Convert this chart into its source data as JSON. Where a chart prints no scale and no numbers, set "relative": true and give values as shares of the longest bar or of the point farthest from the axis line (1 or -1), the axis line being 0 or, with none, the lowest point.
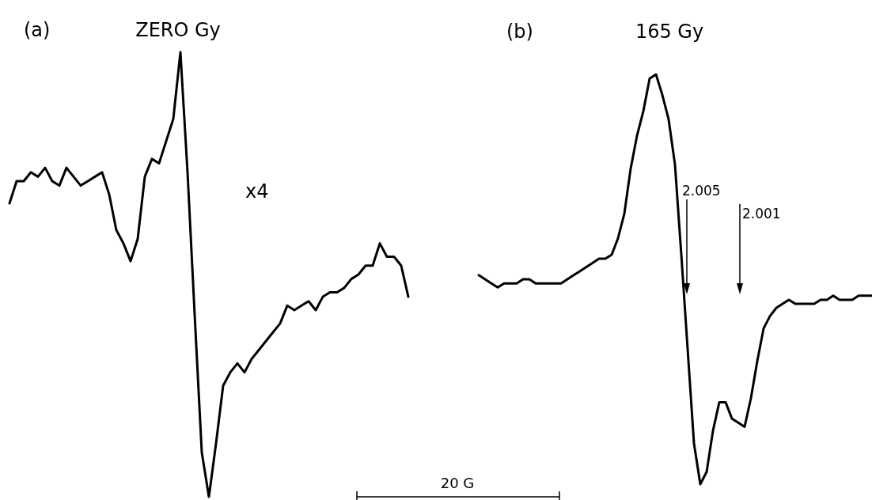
{
  "chart_data": [
    {
      "type": "line",
      "title": "ZERO Gy",
      "relative": true,
      "annotations": [
        "(a)",
        "x4"
      ],
      "categories": [
        null,
        null,
        null,
        null,
        null,
        null,
        null,
        null,
        null,
        null,
        null,
        null,
        null,
        null,
        null,
        null,
        null,
        null,
        null,
        null,
        null,
        null,
        null,
        null,
        null,
        null,
        null,
        null,
        null,
        null,
        null,
        null,
        null,
        null,
        null,
        null,
        null,
        null,
        null,
        null,
        null,
        null,
        null,
        null,
        null,
        null,
        null,
        null,
        null,
        null,
        null,
        null,
        null,
        null,
        null,
        null,
        null
      ],
      "series": [
        {
          "color": "#000000",
          "values": [
            0.66,
            0.71,
            0.71,
            0.73,
            0.72,
            0.74,
            0.71,
            0.7,
            0.74,
            0.72,
            0.7,
            0.71,
            0.72,
            0.73,
            0.68,
            0.6,
            0.57,
            0.53,
            0.58,
            0.72,
            0.76,
            0.75,
            0.8,
            0.85,
            1,
            0.73,
            0.41,
            0.1,
            0,
            0.12,
            0.25,
            0.28,
            0.3,
            0.28,
            0.31,
            0.33,
            0.35,
            0.37,
            0.39,
            0.43,
            0.42,
            0.43,
            0.44,
            0.42,
            0.45,
            0.46,
            0.46,
            0.47,
            0.49,
            0.5,
            0.52,
            0.52,
            0.57,
            0.54,
            0.54,
            0.52,
            0.45
          ]
        }
      ]
    },
    {
      "type": "line",
      "title": "165 Gy",
      "relative": true,
      "annotations": [
        "(b)",
        "2.005",
        "2.001",
        "20 G"
      ],
      "categories": [
        null,
        null,
        null,
        null,
        null,
        null,
        null,
        null,
        null,
        null,
        null,
        null,
        null,
        null,
        null,
        null,
        null,
        null,
        null,
        null,
        null,
        null,
        null,
        null,
        null,
        null,
        null,
        null,
        null,
        null,
        null,
        null,
        null,
        null,
        null,
        null,
        null,
        null,
        null,
        null,
        null,
        null,
        null,
        null,
        null,
        null,
        null,
        null,
        null,
        null,
        null,
        null,
        null,
        null,
        null,
        null,
        null,
        null,
        null,
        null,
        null,
        null,
        null
      ],
      "series": [
        {
          "color": "#000000",
          "values": [
            0.51,
            0.5,
            0.49,
            0.48,
            0.49,
            0.49,
            0.49,
            0.5,
            0.5,
            0.49,
            0.49,
            0.49,
            0.49,
            0.49,
            0.5,
            0.51,
            0.52,
            0.53,
            0.54,
            0.55,
            0.55,
            0.56,
            0.6,
            0.66,
            0.77,
            0.85,
            0.91,
            0.99,
            1,
            0.95,
            0.89,
            0.78,
            0.56,
            0.33,
            0.1,
            0,
            0.03,
            0.13,
            0.2,
            0.2,
            0.16,
            0.15,
            0.14,
            0.21,
            0.3,
            0.38,
            0.41,
            0.43,
            0.44,
            0.45,
            0.44,
            0.44,
            0.44,
            0.44,
            0.45,
            0.45,
            0.46,
            0.45,
            0.45,
            0.45,
            0.46,
            0.46,
            0.46
          ]
        }
      ]
    }
  ]
}
